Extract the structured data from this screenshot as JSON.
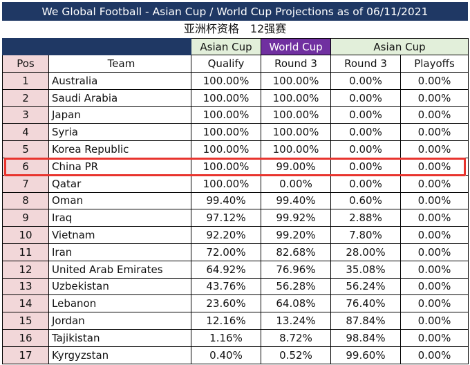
{
  "title": "We Global Football - Asian Cup / World Cup Projections as of 06/11/2021",
  "subtitle": "亚洲杯资格　12强赛",
  "group_headers": {
    "asian_cup_qualify": "Asian Cup",
    "world_cup_round3": "World Cup",
    "asian_cup_right": "Asian Cup"
  },
  "columns": {
    "pos": "Pos",
    "team": "Team",
    "qualify": "Qualify",
    "wc_round3": "Round 3",
    "ac_round3": "Round 3",
    "playoffs": "Playoffs"
  },
  "rows": [
    {
      "pos": "1",
      "team": "Australia",
      "qualify": "100.00%",
      "wc_round3": "100.00%",
      "ac_round3": "0.00%",
      "playoffs": "0.00%"
    },
    {
      "pos": "2",
      "team": "Saudi Arabia",
      "qualify": "100.00%",
      "wc_round3": "100.00%",
      "ac_round3": "0.00%",
      "playoffs": "0.00%"
    },
    {
      "pos": "3",
      "team": "Japan",
      "qualify": "100.00%",
      "wc_round3": "100.00%",
      "ac_round3": "0.00%",
      "playoffs": "0.00%"
    },
    {
      "pos": "4",
      "team": "Syria",
      "qualify": "100.00%",
      "wc_round3": "100.00%",
      "ac_round3": "0.00%",
      "playoffs": "0.00%"
    },
    {
      "pos": "5",
      "team": "Korea Republic",
      "qualify": "100.00%",
      "wc_round3": "100.00%",
      "ac_round3": "0.00%",
      "playoffs": "0.00%"
    },
    {
      "pos": "6",
      "team": "China PR",
      "qualify": "100.00%",
      "wc_round3": "99.00%",
      "ac_round3": "0.00%",
      "playoffs": "0.00%"
    },
    {
      "pos": "7",
      "team": "Qatar",
      "qualify": "100.00%",
      "wc_round3": "0.00%",
      "ac_round3": "0.00%",
      "playoffs": "0.00%"
    },
    {
      "pos": "8",
      "team": "Oman",
      "qualify": "99.40%",
      "wc_round3": "99.40%",
      "ac_round3": "0.60%",
      "playoffs": "0.00%"
    },
    {
      "pos": "9",
      "team": "Iraq",
      "qualify": "97.12%",
      "wc_round3": "99.92%",
      "ac_round3": "2.88%",
      "playoffs": "0.00%"
    },
    {
      "pos": "10",
      "team": "Vietnam",
      "qualify": "92.20%",
      "wc_round3": "99.20%",
      "ac_round3": "7.80%",
      "playoffs": "0.00%"
    },
    {
      "pos": "11",
      "team": "Iran",
      "qualify": "72.00%",
      "wc_round3": "82.68%",
      "ac_round3": "28.00%",
      "playoffs": "0.00%"
    },
    {
      "pos": "12",
      "team": "United Arab Emirates",
      "qualify": "64.92%",
      "wc_round3": "76.96%",
      "ac_round3": "35.08%",
      "playoffs": "0.00%"
    },
    {
      "pos": "13",
      "team": "Uzbekistan",
      "qualify": "43.76%",
      "wc_round3": "56.28%",
      "ac_round3": "56.24%",
      "playoffs": "0.00%"
    },
    {
      "pos": "14",
      "team": "Lebanon",
      "qualify": "23.60%",
      "wc_round3": "64.08%",
      "ac_round3": "76.40%",
      "playoffs": "0.00%"
    },
    {
      "pos": "15",
      "team": "Jordan",
      "qualify": "12.16%",
      "wc_round3": "13.24%",
      "ac_round3": "87.84%",
      "playoffs": "0.00%"
    },
    {
      "pos": "16",
      "team": "Tajikistan",
      "qualify": "1.16%",
      "wc_round3": "8.72%",
      "ac_round3": "98.84%",
      "playoffs": "0.00%"
    },
    {
      "pos": "17",
      "team": "Kyrgyzstan",
      "qualify": "0.40%",
      "wc_round3": "0.52%",
      "ac_round3": "99.60%",
      "playoffs": "0.00%"
    }
  ],
  "highlighted_team": "China PR",
  "colors": {
    "header_navy": "#1f3864",
    "world_cup_purple": "#7030a0",
    "asian_cup_green": "#e2efda",
    "pos_pink": "#f2d7d9",
    "highlight_red": "#e8342e"
  }
}
